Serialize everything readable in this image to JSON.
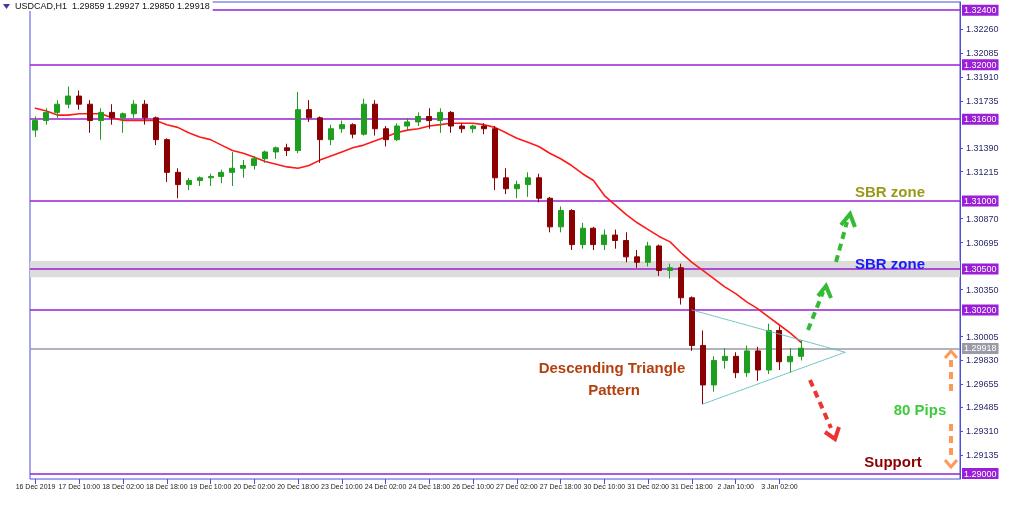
{
  "chart_data": {
    "type": "candlestick",
    "title": "USDCAD,H1  1.29859 1.29927 1.29850 1.29918",
    "categories": [
      "16 Dec 2019",
      null,
      null,
      null,
      "17 Dec 10:00",
      null,
      null,
      null,
      "18 Dec 02:00",
      null,
      null,
      null,
      "18 Dec 18:00",
      null,
      null,
      null,
      "19 Dec 10:00",
      null,
      null,
      null,
      "20 Dec 02:00",
      null,
      null,
      null,
      "20 Dec 18:00",
      null,
      null,
      null,
      "23 Dec 10:00",
      null,
      null,
      null,
      "24 Dec 02:00",
      null,
      null,
      null,
      "24 Dec 18:00",
      null,
      null,
      null,
      "26 Dec 10:00",
      null,
      null,
      null,
      "27 Dec 02:00",
      null,
      null,
      null,
      "27 Dec 18:00",
      null,
      null,
      null,
      "30 Dec 10:00",
      null,
      null,
      null,
      "31 Dec 02:00",
      null,
      null,
      null,
      "31 Dec 18:00",
      null,
      null,
      null,
      "2 Jan 10:00",
      null,
      null,
      null,
      "3 Jan 02:00",
      null,
      null,
      null,
      null,
      null,
      null,
      null,
      null,
      null,
      null,
      null,
      null,
      null,
      null,
      null,
      null
    ],
    "ohlc": [
      [
        1.3152,
        1.3162,
        1.3147,
        1.3159
      ],
      [
        1.3159,
        1.3168,
        1.3156,
        1.3165
      ],
      [
        1.3165,
        1.3174,
        1.3161,
        1.3171
      ],
      [
        1.3171,
        1.3184,
        1.3168,
        1.3177
      ],
      [
        1.3177,
        1.3181,
        1.3167,
        1.3171
      ],
      [
        1.3171,
        1.3174,
        1.315,
        1.3159
      ],
      [
        1.3159,
        1.3168,
        1.3145,
        1.3165
      ],
      [
        1.3165,
        1.3171,
        1.3156,
        1.3161
      ],
      [
        1.3161,
        1.3165,
        1.315,
        1.3164
      ],
      [
        1.3164,
        1.3174,
        1.3161,
        1.3171
      ],
      [
        1.3171,
        1.3174,
        1.3156,
        1.3161
      ],
      [
        1.3161,
        1.3162,
        1.3141,
        1.3145
      ],
      [
        1.3145,
        1.3146,
        1.3114,
        1.3121
      ],
      [
        1.3121,
        1.3124,
        1.3102,
        1.3112
      ],
      [
        1.3112,
        1.3117,
        1.3108,
        1.3115
      ],
      [
        1.3115,
        1.3118,
        1.3111,
        1.3117
      ],
      [
        1.3117,
        1.312,
        1.3111,
        1.3118
      ],
      [
        1.3118,
        1.3123,
        1.3113,
        1.3121
      ],
      [
        1.3121,
        1.3136,
        1.3111,
        1.3124
      ],
      [
        1.3124,
        1.313,
        1.3117,
        1.3126
      ],
      [
        1.3126,
        1.3133,
        1.3123,
        1.3131
      ],
      [
        1.3131,
        1.3137,
        1.3128,
        1.3136
      ],
      [
        1.3136,
        1.314,
        1.3131,
        1.3139
      ],
      [
        1.3139,
        1.3142,
        1.3133,
        1.3137
      ],
      [
        1.3137,
        1.318,
        1.3135,
        1.3167
      ],
      [
        1.3167,
        1.3174,
        1.3158,
        1.3161
      ],
      [
        1.3161,
        1.3162,
        1.3128,
        1.3145
      ],
      [
        1.3145,
        1.3156,
        1.3141,
        1.3153
      ],
      [
        1.3153,
        1.3159,
        1.315,
        1.3156
      ],
      [
        1.3156,
        1.3157,
        1.3146,
        1.3149
      ],
      [
        1.3149,
        1.3175,
        1.3148,
        1.3171
      ],
      [
        1.3171,
        1.3174,
        1.3148,
        1.3153
      ],
      [
        1.3153,
        1.3155,
        1.314,
        1.3145
      ],
      [
        1.3145,
        1.3157,
        1.3144,
        1.3155
      ],
      [
        1.3155,
        1.3161,
        1.3152,
        1.3158
      ],
      [
        1.3158,
        1.3165,
        1.3155,
        1.3162
      ],
      [
        1.3162,
        1.3168,
        1.3153,
        1.3159
      ],
      [
        1.3159,
        1.3168,
        1.315,
        1.3165
      ],
      [
        1.3165,
        1.3166,
        1.315,
        1.3155
      ],
      [
        1.3155,
        1.3157,
        1.315,
        1.3153
      ],
      [
        1.3153,
        1.3156,
        1.315,
        1.3155
      ],
      [
        1.3155,
        1.3157,
        1.3149,
        1.3153
      ],
      [
        1.3153,
        1.3155,
        1.3108,
        1.3117
      ],
      [
        1.3117,
        1.3124,
        1.3105,
        1.3109
      ],
      [
        1.3109,
        1.3115,
        1.3102,
        1.3112
      ],
      [
        1.3112,
        1.3121,
        1.3103,
        1.3117
      ],
      [
        1.3117,
        1.312,
        1.3099,
        1.3102
      ],
      [
        1.3102,
        1.3103,
        1.3077,
        1.3081
      ],
      [
        1.3081,
        1.3096,
        1.3077,
        1.3093
      ],
      [
        1.3093,
        1.3094,
        1.3064,
        1.3068
      ],
      [
        1.3068,
        1.3084,
        1.3065,
        1.308
      ],
      [
        1.308,
        1.3081,
        1.3064,
        1.3068
      ],
      [
        1.3068,
        1.3079,
        1.3064,
        1.3075
      ],
      [
        1.3075,
        1.3079,
        1.3065,
        1.3071
      ],
      [
        1.3071,
        1.3077,
        1.3055,
        1.3059
      ],
      [
        1.3059,
        1.3064,
        1.3051,
        1.3055
      ],
      [
        1.3055,
        1.307,
        1.3052,
        1.3067
      ],
      [
        1.3067,
        1.3068,
        1.3045,
        1.3049
      ],
      [
        1.3049,
        1.3054,
        1.3043,
        1.3051
      ],
      [
        1.3051,
        1.3054,
        1.3024,
        1.3029
      ],
      [
        1.3029,
        1.303,
        1.299,
        1.2994
      ],
      [
        1.2994,
        1.3005,
        1.2951,
        1.2965
      ],
      [
        1.2965,
        1.2986,
        1.296,
        1.2983
      ],
      [
        1.2983,
        1.2992,
        1.2977,
        1.2986
      ],
      [
        1.2986,
        1.2989,
        1.297,
        1.2974
      ],
      [
        1.2974,
        1.2994,
        1.2971,
        1.299
      ],
      [
        1.299,
        1.2993,
        1.2968,
        1.2976
      ],
      [
        1.2976,
        1.301,
        1.2973,
        1.3005
      ],
      [
        1.3005,
        1.3008,
        1.2976,
        1.2982
      ],
      [
        1.2982,
        1.2992,
        1.2974,
        1.2986
      ],
      [
        1.2986,
        1.2998,
        1.2983,
        1.2992
      ],
      null,
      null,
      null,
      null,
      null,
      null,
      null,
      null,
      null,
      null,
      null,
      null,
      null,
      null
    ],
    "colors": [
      "#1e9e1e",
      "#1e9e1e",
      "#1e9e1e",
      "#1e9e1e",
      "#8b0000",
      "#8b0000",
      "#1e9e1e",
      "#8b0000",
      "#1e9e1e",
      "#1e9e1e",
      "#8b0000",
      "#8b0000",
      "#8b0000",
      "#8b0000",
      "#1e9e1e",
      "#1e9e1e",
      "#1e9e1e",
      "#1e9e1e",
      "#1e9e1e",
      "#1e9e1e",
      "#1e9e1e",
      "#1e9e1e",
      "#1e9e1e",
      "#8b0000",
      "#1e9e1e",
      "#8b0000",
      "#8b0000",
      "#1e9e1e",
      "#1e9e1e",
      "#8b0000",
      "#1e9e1e",
      "#8b0000",
      "#8b0000",
      "#1e9e1e",
      "#1e9e1e",
      "#1e9e1e",
      "#8b0000",
      "#1e9e1e",
      "#8b0000",
      "#8b0000",
      "#1e9e1e",
      "#8b0000",
      "#8b0000",
      "#8b0000",
      "#1e9e1e",
      "#1e9e1e",
      "#8b0000",
      "#8b0000",
      "#1e9e1e",
      "#8b0000",
      "#1e9e1e",
      "#8b0000",
      "#1e9e1e",
      "#8b0000",
      "#8b0000",
      "#8b0000",
      "#1e9e1e",
      "#8b0000",
      "#1e9e1e",
      "#8b0000",
      "#8b0000",
      "#8b0000",
      "#1e9e1e",
      "#1e9e1e",
      "#8b0000",
      "#1e9e1e",
      "#8b0000",
      "#1e9e1e",
      "#8b0000",
      "#1e9e1e",
      "#1e9e1e",
      null,
      null,
      null,
      null,
      null,
      null,
      null,
      null,
      null,
      null,
      null,
      null,
      null,
      null
    ],
    "series": [
      {
        "type": "line",
        "color": "#ff1a1a",
        "line_style": "solid",
        "values": [
          1.3168,
          1.3166,
          1.3163,
          1.3163,
          1.3164,
          1.3164,
          1.3164,
          1.3161,
          1.3159,
          1.3159,
          1.3159,
          1.3159,
          1.3156,
          1.3154,
          1.315,
          1.3147,
          1.3145,
          1.3141,
          1.3137,
          1.3135,
          1.3132,
          1.3129,
          1.3127,
          1.3125,
          1.3124,
          1.3126,
          1.313,
          1.3133,
          1.3136,
          1.3139,
          1.3141,
          1.3144,
          1.3147,
          1.315,
          1.3152,
          1.3153,
          1.3155,
          1.3156,
          1.3157,
          1.3157,
          1.3157,
          1.3156,
          1.3154,
          1.315,
          1.3146,
          1.3143,
          1.314,
          1.3135,
          1.3131,
          1.3126,
          1.312,
          1.3115,
          1.3104,
          1.3097,
          1.309,
          1.3084,
          1.3079,
          1.3074,
          1.307,
          1.3062,
          1.3055,
          1.3049,
          1.3043,
          1.3037,
          1.3032,
          1.3026,
          1.3021,
          1.3015,
          1.3009,
          1.3003,
          1.2996,
          null,
          null,
          null,
          null,
          null,
          null,
          null,
          null,
          null,
          null,
          null,
          null,
          null,
          null
        ]
      },
      {
        "type": "line",
        "color": "#5fbfbf",
        "line_style": "dotted",
        "values": [
          null,
          null,
          null,
          null,
          null,
          null,
          null,
          null,
          null,
          null,
          null,
          null,
          null,
          null,
          null,
          null,
          null,
          null,
          null,
          null,
          null,
          null,
          null,
          null,
          null,
          null,
          null,
          null,
          null,
          null,
          null,
          null,
          null,
          null,
          null,
          null,
          null,
          null,
          null,
          null,
          null,
          null,
          null,
          null,
          null,
          null,
          null,
          null,
          null,
          null,
          null,
          null,
          null,
          null,
          null,
          null,
          null,
          null,
          null,
          null,
          1.302,
          null,
          null,
          null,
          null,
          null,
          null,
          null,
          null,
          null,
          null,
          null,
          null,
          null,
          1.2989,
          null,
          null,
          null,
          null,
          null,
          null,
          null,
          null,
          null,
          null
        ]
      },
      {
        "type": "line",
        "color": "#5fbfbf",
        "line_style": "dotted",
        "values": [
          null,
          null,
          null,
          null,
          null,
          null,
          null,
          null,
          null,
          null,
          null,
          null,
          null,
          null,
          null,
          null,
          null,
          null,
          null,
          null,
          null,
          null,
          null,
          null,
          null,
          null,
          null,
          null,
          null,
          null,
          null,
          null,
          null,
          null,
          null,
          null,
          null,
          null,
          null,
          null,
          null,
          null,
          null,
          null,
          null,
          null,
          null,
          null,
          null,
          null,
          null,
          null,
          null,
          null,
          null,
          null,
          null,
          null,
          null,
          null,
          null,
          1.2951,
          null,
          null,
          null,
          null,
          null,
          null,
          null,
          null,
          null,
          null,
          null,
          null,
          1.2989,
          null,
          null,
          null,
          null,
          null,
          null,
          null,
          null,
          null,
          null
        ]
      }
    ],
    "marker": "none",
    "ylim": [
      1.2896,
      1.3246
    ],
    "yticks": [
      {
        "value": 1.3226,
        "label": "1.32260"
      },
      {
        "value": 1.32085,
        "label": "1.32085"
      },
      {
        "value": 1.3191,
        "label": "1.31910"
      },
      {
        "value": 1.31735,
        "label": "1.31735"
      },
      {
        "value": 1.3139,
        "label": "1.31390"
      },
      {
        "value": 1.31215,
        "label": "1.31215"
      },
      {
        "value": 1.3087,
        "label": "1.30870"
      },
      {
        "value": 1.30695,
        "label": "1.30695"
      },
      {
        "value": 1.3035,
        "label": "1.30350"
      },
      {
        "value": 1.30005,
        "label": "1.30005"
      },
      {
        "value": 1.2983,
        "label": "1.29830"
      },
      {
        "value": 1.29655,
        "label": "1.29655"
      },
      {
        "value": 1.29485,
        "label": "1.29485"
      },
      {
        "value": 1.2931,
        "label": "1.29310"
      },
      {
        "value": 1.29135,
        "label": "1.29135"
      }
    ],
    "ref_lines": [
      {
        "axis": "y",
        "value": 1.324,
        "label": "1.32400",
        "color": "#9b1fd6"
      },
      {
        "axis": "y",
        "value": 1.32,
        "label": "1.32000",
        "color": "#9b1fd6"
      },
      {
        "axis": "y",
        "value": 1.316,
        "label": "1.31600",
        "color": "#9b1fd6"
      },
      {
        "axis": "y",
        "value": 1.31,
        "label": "1.31000",
        "color": "#9b1fd6"
      },
      {
        "axis": "y",
        "value": 1.305,
        "label": "1.30500",
        "color": "#9b1fd6"
      },
      {
        "axis": "y",
        "value": 1.302,
        "label": "1.30200",
        "color": "#9b1fd6"
      },
      {
        "axis": "y",
        "value": 1.29918,
        "label": "1.29918",
        "color": "#9a9aa8"
      },
      {
        "axis": "y",
        "value": 1.29,
        "label": "1.29000",
        "color": "#9b1fd6"
      }
    ],
    "bands": [
      {
        "axis": "y",
        "from": 1.3044,
        "to": 1.3056,
        "color": "#dcdcdc"
      }
    ],
    "annotations": [
      "SBR zone",
      "SBR zone",
      "Descending Triangle Pattern",
      "80 Pips",
      "Support"
    ]
  }
}
